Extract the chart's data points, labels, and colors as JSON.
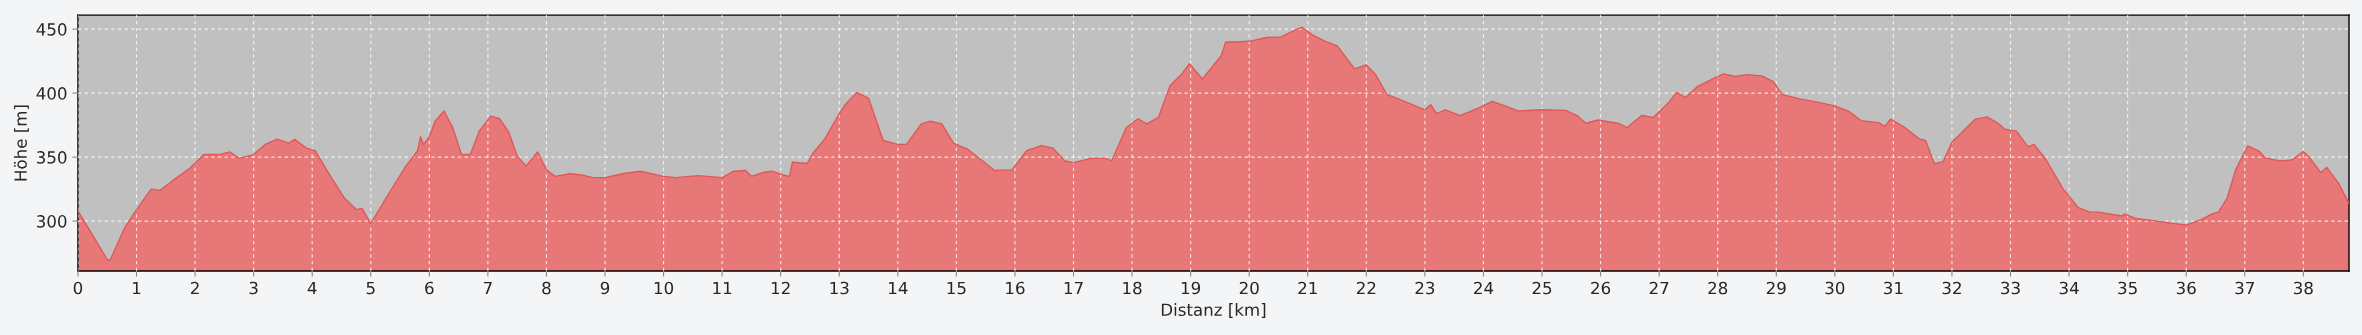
{
  "chart_data": {
    "type": "area",
    "xlabel": "Distanz [km]",
    "ylabel": "Höhe [m]",
    "xlim": [
      0,
      38.78
    ],
    "ylim": [
      261,
      461
    ],
    "xticks": [
      0,
      1,
      2,
      3,
      4,
      5,
      6,
      7,
      8,
      9,
      10,
      11,
      12,
      13,
      14,
      15,
      16,
      17,
      18,
      19,
      20,
      21,
      22,
      23,
      24,
      25,
      26,
      27,
      28,
      29,
      30,
      31,
      32,
      33,
      34,
      35,
      36,
      37,
      38
    ],
    "yticks": [
      300,
      350,
      400,
      450
    ],
    "grid": true,
    "series": [
      {
        "color": "#e87878",
        "x": [
          0,
          0.5,
          0.55,
          0.8,
          1.0,
          1.25,
          1.4,
          1.6,
          1.9,
          2.15,
          2.4,
          2.6,
          2.75,
          3.0,
          3.2,
          3.4,
          3.6,
          3.7,
          3.9,
          4.05,
          4.3,
          4.55,
          4.75,
          4.85,
          5.0,
          5.3,
          5.6,
          5.8,
          5.85,
          5.9,
          6.0,
          6.1,
          6.25,
          6.4,
          6.55,
          6.7,
          6.85,
          7.05,
          7.2,
          7.35,
          7.5,
          7.65,
          7.85,
          8.0,
          8.15,
          8.4,
          8.6,
          8.8,
          9.0,
          9.3,
          9.6,
          10.0,
          10.2,
          10.6,
          11.0,
          11.2,
          11.4,
          11.5,
          11.7,
          11.85,
          12.05,
          12.15,
          12.2,
          12.45,
          12.55,
          12.75,
          12.95,
          13.1,
          13.3,
          13.5,
          13.75,
          14.0,
          14.15,
          14.4,
          14.55,
          14.75,
          14.95,
          15.2,
          15.45,
          15.65,
          15.95,
          16.2,
          16.45,
          16.65,
          16.85,
          17.0,
          17.3,
          17.55,
          17.65,
          17.9,
          18.1,
          18.25,
          18.45,
          18.65,
          18.85,
          18.98,
          19.2,
          19.52,
          19.6,
          19.75,
          20.0,
          20.3,
          20.55,
          20.7,
          20.9,
          21.1,
          21.3,
          21.5,
          21.8,
          22.0,
          22.15,
          22.35,
          22.6,
          23.0,
          23.1,
          23.2,
          23.35,
          23.6,
          23.9,
          24.15,
          24.4,
          24.6,
          25.0,
          25.4,
          25.6,
          25.75,
          25.95,
          26.3,
          26.45,
          26.7,
          26.9,
          27.15,
          27.3,
          27.45,
          27.65,
          27.95,
          28.1,
          28.3,
          28.5,
          28.75,
          28.95,
          29.1,
          29.4,
          29.7,
          30.0,
          30.25,
          30.45,
          30.75,
          30.85,
          30.95,
          31.2,
          31.45,
          31.55,
          31.7,
          31.85,
          32.0,
          32.25,
          32.4,
          32.6,
          32.8,
          32.9,
          33.1,
          33.3,
          33.4,
          33.6,
          33.9,
          34.0,
          34.15,
          34.35,
          34.5,
          34.9,
          34.95,
          35.15,
          35.5,
          35.75,
          36.0,
          36.25,
          36.45,
          36.55,
          36.7,
          36.85,
          37.05,
          37.25,
          37.35,
          37.6,
          37.8,
          38.0,
          38.1,
          38.3,
          38.4,
          38.6,
          38.78
        ],
        "values": [
          308,
          270,
          269.5,
          295,
          309,
          325,
          324,
          331,
          341,
          352,
          352,
          354,
          349,
          352,
          360,
          364,
          361,
          364,
          357,
          355,
          336,
          318,
          309,
          310,
          298,
          321,
          343,
          355,
          366,
          360,
          366,
          378,
          386,
          373,
          352,
          352,
          370,
          382,
          380,
          370,
          351,
          343,
          354,
          340,
          335,
          337,
          336,
          334,
          334,
          337,
          339,
          335,
          334,
          335.5,
          334,
          339,
          339.5,
          335,
          338,
          339,
          336,
          335,
          346,
          345,
          353,
          364,
          380,
          391,
          400.6,
          396,
          363,
          360,
          360,
          376,
          378,
          376,
          361,
          356,
          347,
          339.5,
          340,
          355,
          359,
          357,
          347,
          345.7,
          349,
          349,
          347,
          373,
          380,
          376,
          381,
          406,
          415,
          423,
          411,
          429,
          440,
          440,
          440.5,
          443.5,
          444,
          447.5,
          451.5,
          445,
          440.5,
          437,
          419,
          422,
          415,
          399,
          394.5,
          387,
          391,
          384,
          387,
          382.5,
          388,
          393.5,
          389.5,
          386,
          387,
          386.5,
          382.5,
          376.5,
          379,
          376.5,
          373,
          382.5,
          381,
          392,
          400.6,
          396.6,
          405,
          412,
          415,
          413,
          414.5,
          413.5,
          409,
          399,
          395.5,
          393,
          390,
          385.5,
          378.5,
          377,
          374,
          379.7,
          373,
          364,
          363,
          344.8,
          346.5,
          361.6,
          373,
          379.7,
          381.4,
          376,
          371.8,
          370.3,
          358,
          360,
          348.5,
          325,
          319.5,
          310.8,
          307,
          307,
          304,
          305.5,
          302,
          300,
          298.3,
          297,
          301,
          305.8,
          307,
          318,
          340.7,
          358.7,
          354.4,
          349.4,
          347,
          347.7,
          354.4,
          350,
          337.8,
          342,
          329.7,
          313.7
        ]
      }
    ]
  }
}
